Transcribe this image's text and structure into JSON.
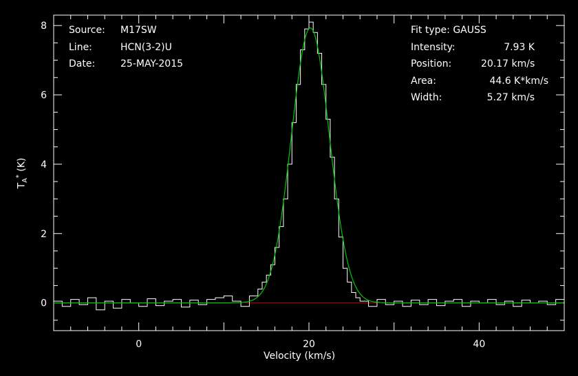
{
  "header": {
    "source_label": "Source:",
    "source_value": "M17SW",
    "line_label": "Line:",
    "line_value": "HCN(3-2)U",
    "date_label": "Date:",
    "date_value": "25-MAY-2015"
  },
  "fit": {
    "type_label": "Fit type:",
    "type_value": "GAUSS",
    "intensity_label": "Intensity:",
    "intensity_value": "7.93 K",
    "position_label": "Position:",
    "position_value": "20.17 km/s",
    "area_label": "Area:",
    "area_value": "44.6 K*km/s",
    "width_label": "Width:",
    "width_value": "5.27 km/s"
  },
  "colors": {
    "background": "#000000",
    "axes": "#ffffff",
    "spectrum": "#ffffff",
    "fit": "#00c800",
    "baseline": "#c00000"
  },
  "chart_data": {
    "type": "line",
    "xlabel": "Velocity (km/s)",
    "ylabel_main": "T",
    "ylabel_sub": "A",
    "ylabel_sup": "*",
    "ylabel_unit": " (K)",
    "xlim": [
      -10,
      50
    ],
    "ylim": [
      -0.8,
      8.3
    ],
    "xticks": [
      0,
      20,
      40
    ],
    "yticks": [
      0,
      2,
      4,
      6,
      8
    ],
    "grid": false,
    "series": [
      {
        "style": "histogram",
        "x": [
          -10,
          -9,
          -8,
          -7,
          -6,
          -5,
          -4,
          -3,
          -2,
          -1,
          0,
          1,
          2,
          3,
          4,
          5,
          6,
          7,
          8,
          9,
          10,
          11,
          12,
          13,
          14,
          14.5,
          15,
          15.5,
          16,
          16.5,
          17,
          17.5,
          18,
          18.5,
          19,
          19.5,
          20,
          20.5,
          21,
          21.5,
          22,
          22.5,
          23,
          23.5,
          24,
          24.5,
          25,
          25.5,
          26,
          27,
          28,
          29,
          30,
          31,
          32,
          33,
          34,
          35,
          36,
          37,
          38,
          39,
          40,
          41,
          42,
          43,
          44,
          45,
          46,
          47,
          48,
          49,
          50
        ],
        "y": [
          0.05,
          -0.1,
          0.1,
          -0.05,
          0.15,
          -0.2,
          0.05,
          -0.15,
          0.1,
          0.0,
          -0.1,
          0.12,
          -0.08,
          0.05,
          0.1,
          -0.12,
          0.08,
          -0.05,
          0.1,
          0.15,
          0.2,
          0.05,
          -0.1,
          0.2,
          0.4,
          0.6,
          0.8,
          1.1,
          1.6,
          2.2,
          3.0,
          4.0,
          5.2,
          6.3,
          7.3,
          7.9,
          8.1,
          7.8,
          7.2,
          6.3,
          5.3,
          4.2,
          3.0,
          1.9,
          1.0,
          0.6,
          0.3,
          0.15,
          0.05,
          -0.1,
          0.1,
          -0.05,
          0.05,
          -0.1,
          0.08,
          -0.05,
          0.1,
          -0.08,
          0.05,
          0.1,
          -0.1,
          0.05,
          0.0,
          0.1,
          -0.05,
          0.05,
          -0.1,
          0.08,
          0.0,
          0.05,
          -0.05,
          0.1,
          0.05
        ]
      },
      {
        "style": "gaussian-fit",
        "amplitude": 7.93,
        "center": 20.17,
        "fwhm": 5.27,
        "x_from": -10,
        "x_to": 50
      },
      {
        "style": "baseline",
        "x": [
          12.5,
          28.0
        ],
        "y": [
          0,
          0
        ]
      }
    ]
  }
}
